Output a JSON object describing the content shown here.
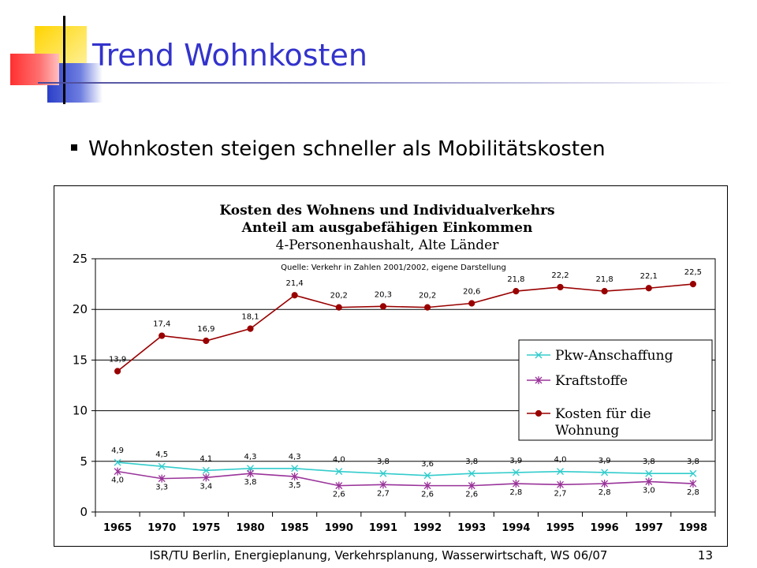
{
  "slide": {
    "title": "Trend Wohnkosten",
    "bullet": "Wohnkosten steigen schneller als Mobilitätskosten",
    "footer": "ISR/TU Berlin, Energieplanung, Verkehrsplanung, Wasserwirtschaft, WS 06/07",
    "page_number": "13"
  },
  "colors": {
    "title": "#3333cc",
    "pkw": "#33cccc",
    "kraftstoffe": "#993399",
    "wohnung": "#990000"
  },
  "chart_data": {
    "type": "line",
    "title_lines": [
      "Kosten des Wohnens und  Individualverkehrs",
      "Anteil am ausgabefähigen Einkommen",
      "4-Personenhaushalt, Alte Länder"
    ],
    "source": "Quelle: Verkehr in Zahlen 2001/2002, eigene Darstellung",
    "categories": [
      "1965",
      "1970",
      "1975",
      "1980",
      "1985",
      "1990",
      "1991",
      "1992",
      "1993",
      "1994",
      "1995",
      "1996",
      "1997",
      "1998"
    ],
    "ylim": [
      0,
      25
    ],
    "yticks": [
      "0",
      "5",
      "10",
      "15",
      "20",
      "25"
    ],
    "grid": true,
    "legend_position": "right",
    "series": [
      {
        "name": "Pkw-Anschaffung",
        "color": "#33cccc",
        "marker": "x",
        "values": [
          4.9,
          4.5,
          4.1,
          4.3,
          4.3,
          4.0,
          3.8,
          3.6,
          3.8,
          3.9,
          4.0,
          3.9,
          3.8,
          3.8
        ],
        "labels": [
          "4,9",
          "4,5",
          "4,1",
          "4,3",
          "4,3",
          "4,0",
          "3,8",
          "3,6",
          "3,8",
          "3,9",
          "4,0",
          "3,9",
          "3,8",
          "3,8"
        ]
      },
      {
        "name": "Kraftstoffe",
        "color": "#993399",
        "marker": "star",
        "values": [
          4.0,
          3.3,
          3.4,
          3.8,
          3.5,
          2.6,
          2.7,
          2.6,
          2.6,
          2.8,
          2.7,
          2.8,
          3.0,
          2.8
        ],
        "labels": [
          "4,0",
          "3,3",
          "3,4",
          "3,8",
          "3,5",
          "2,6",
          "2,7",
          "2,6",
          "2,6",
          "2,8",
          "2,7",
          "2,8",
          "3,0",
          "2,8"
        ]
      },
      {
        "name_lines": [
          "Kosten für die",
          "Wohnung"
        ],
        "color": "#990000",
        "marker": "dot",
        "values": [
          13.9,
          17.4,
          16.9,
          18.1,
          21.4,
          20.2,
          20.3,
          20.2,
          20.6,
          21.8,
          22.2,
          21.8,
          22.1,
          22.5
        ],
        "labels": [
          "13,9",
          "17,4",
          "16,9",
          "18,1",
          "21,4",
          "20,2",
          "20,3",
          "20,2",
          "20,6",
          "21,8",
          "22,2",
          "21,8",
          "22,1",
          "22,5"
        ]
      }
    ]
  }
}
